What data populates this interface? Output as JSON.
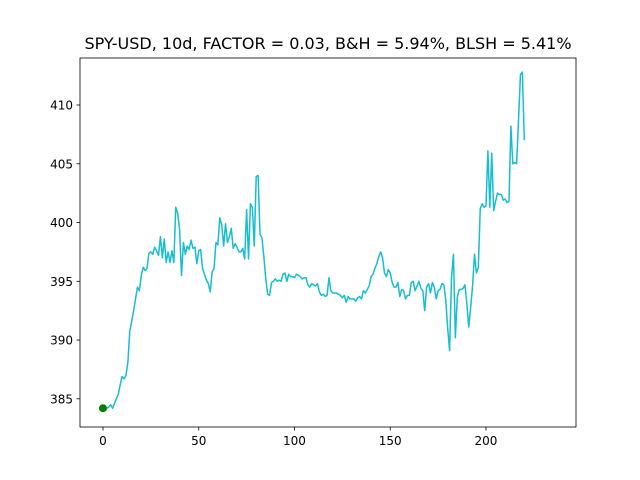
{
  "chart_data": {
    "type": "line",
    "title": "SPY-USD, 10d, FACTOR = 0.03, B&H = 5.94%, BLSH = 5.41%",
    "xlabel": "",
    "ylabel": "",
    "xlim": [
      -12,
      247
    ],
    "ylim": [
      382.6,
      414
    ],
    "xticks": [
      0,
      50,
      100,
      150,
      200
    ],
    "yticks": [
      385,
      390,
      395,
      400,
      405,
      410
    ],
    "grid": false,
    "series": [
      {
        "color": "#17becf",
        "points": [
          [
            0,
            384.2
          ],
          [
            1,
            384.3
          ],
          [
            2,
            384.2
          ],
          [
            3,
            384.3
          ],
          [
            4,
            384.5
          ],
          [
            5,
            384.2
          ],
          [
            6,
            384.6
          ],
          [
            7,
            385.0
          ],
          [
            8,
            385.4
          ],
          [
            9,
            386.2
          ],
          [
            10,
            386.9
          ],
          [
            11,
            386.7
          ],
          [
            12,
            387.0
          ],
          [
            13,
            388.1
          ],
          [
            14,
            390.8
          ],
          [
            15,
            391.6
          ],
          [
            16,
            392.5
          ],
          [
            17,
            393.5
          ],
          [
            18,
            394.5
          ],
          [
            19,
            394.2
          ],
          [
            20,
            395.5
          ],
          [
            21,
            396.2
          ],
          [
            22,
            395.9
          ],
          [
            23,
            396.1
          ],
          [
            24,
            397.4
          ],
          [
            25,
            397.5
          ],
          [
            26,
            397.3
          ],
          [
            27,
            397.9
          ],
          [
            28,
            397.6
          ],
          [
            29,
            397.2
          ],
          [
            30,
            398.8
          ],
          [
            31,
            397.0
          ],
          [
            32,
            398.6
          ],
          [
            33,
            396.6
          ],
          [
            34,
            397.5
          ],
          [
            35,
            396.6
          ],
          [
            36,
            397.6
          ],
          [
            37,
            396.6
          ],
          [
            38,
            401.3
          ],
          [
            39,
            400.8
          ],
          [
            40,
            399.4
          ],
          [
            41,
            395.5
          ],
          [
            42,
            398.3
          ],
          [
            43,
            397.3
          ],
          [
            44,
            398.0
          ],
          [
            45,
            397.7
          ],
          [
            46,
            398.5
          ],
          [
            47,
            397.8
          ],
          [
            48,
            397.9
          ],
          [
            49,
            396.5
          ],
          [
            50,
            397.6
          ],
          [
            51,
            397.7
          ],
          [
            52,
            396.1
          ],
          [
            53,
            395.6
          ],
          [
            54,
            395.1
          ],
          [
            55,
            394.8
          ],
          [
            56,
            394.1
          ],
          [
            57,
            395.8
          ],
          [
            58,
            396.1
          ],
          [
            59,
            398.3
          ],
          [
            60,
            398.1
          ],
          [
            61,
            400.4
          ],
          [
            62,
            399.8
          ],
          [
            63,
            398.0
          ],
          [
            64,
            399.9
          ],
          [
            65,
            398.3
          ],
          [
            66,
            398.8
          ],
          [
            67,
            399.5
          ],
          [
            68,
            397.8
          ],
          [
            69,
            398.2
          ],
          [
            70,
            397.9
          ],
          [
            71,
            397.5
          ],
          [
            72,
            397.5
          ],
          [
            73,
            397.8
          ],
          [
            74,
            396.9
          ],
          [
            75,
            401.1
          ],
          [
            76,
            396.9
          ],
          [
            77,
            401.6
          ],
          [
            78,
            401.3
          ],
          [
            79,
            398.0
          ],
          [
            80,
            403.9
          ],
          [
            81,
            404.0
          ],
          [
            82,
            399.0
          ],
          [
            83,
            398.7
          ],
          [
            84,
            397.1
          ],
          [
            85,
            395.2
          ],
          [
            86,
            393.9
          ],
          [
            87,
            393.8
          ],
          [
            88,
            394.9
          ],
          [
            89,
            395.0
          ],
          [
            90,
            395.2
          ],
          [
            91,
            395.0
          ],
          [
            92,
            395.1
          ],
          [
            93,
            395.0
          ],
          [
            94,
            395.6
          ],
          [
            95,
            395.7
          ],
          [
            96,
            395.0
          ],
          [
            97,
            395.6
          ],
          [
            98,
            395.4
          ],
          [
            99,
            395.4
          ],
          [
            100,
            395.3
          ],
          [
            101,
            395.6
          ],
          [
            102,
            395.5
          ],
          [
            103,
            395.4
          ],
          [
            104,
            395.2
          ],
          [
            105,
            395.3
          ],
          [
            106,
            395.3
          ],
          [
            107,
            394.7
          ],
          [
            108,
            394.5
          ],
          [
            109,
            394.8
          ],
          [
            110,
            394.7
          ],
          [
            111,
            394.6
          ],
          [
            112,
            394.8
          ],
          [
            113,
            394.1
          ],
          [
            114,
            393.8
          ],
          [
            115,
            393.9
          ],
          [
            116,
            393.7
          ],
          [
            117,
            393.8
          ],
          [
            118,
            395.3
          ],
          [
            119,
            394.2
          ],
          [
            120,
            394.0
          ],
          [
            121,
            394.0
          ],
          [
            122,
            394.0
          ],
          [
            123,
            393.9
          ],
          [
            124,
            393.8
          ],
          [
            125,
            393.6
          ],
          [
            126,
            393.8
          ],
          [
            127,
            393.2
          ],
          [
            128,
            393.7
          ],
          [
            129,
            393.5
          ],
          [
            130,
            393.5
          ],
          [
            131,
            393.5
          ],
          [
            132,
            393.3
          ],
          [
            133,
            393.6
          ],
          [
            134,
            393.7
          ],
          [
            135,
            393.5
          ],
          [
            136,
            394.2
          ],
          [
            137,
            394.0
          ],
          [
            138,
            394.3
          ],
          [
            139,
            394.6
          ],
          [
            140,
            395.4
          ],
          [
            141,
            395.6
          ],
          [
            142,
            396.1
          ],
          [
            143,
            396.5
          ],
          [
            144,
            397.1
          ],
          [
            145,
            397.5
          ],
          [
            146,
            397.0
          ],
          [
            147,
            395.7
          ],
          [
            148,
            395.4
          ],
          [
            149,
            396.0
          ],
          [
            150,
            395.7
          ],
          [
            151,
            394.9
          ],
          [
            152,
            394.5
          ],
          [
            153,
            394.5
          ],
          [
            154,
            394.9
          ],
          [
            155,
            393.7
          ],
          [
            156,
            394.3
          ],
          [
            157,
            394.2
          ],
          [
            158,
            393.5
          ],
          [
            159,
            393.8
          ],
          [
            160,
            393.8
          ],
          [
            161,
            394.9
          ],
          [
            162,
            395.0
          ],
          [
            163,
            394.2
          ],
          [
            164,
            394.6
          ],
          [
            165,
            395.0
          ],
          [
            166,
            394.4
          ],
          [
            167,
            394.2
          ],
          [
            168,
            392.5
          ],
          [
            169,
            394.5
          ],
          [
            170,
            394.8
          ],
          [
            171,
            394.0
          ],
          [
            172,
            394.9
          ],
          [
            173,
            394.5
          ],
          [
            174,
            393.5
          ],
          [
            175,
            394.2
          ],
          [
            176,
            394.3
          ],
          [
            177,
            394.8
          ],
          [
            178,
            394.7
          ],
          [
            179,
            393.4
          ],
          [
            180,
            391.0
          ],
          [
            181,
            389.1
          ],
          [
            182,
            395.3
          ],
          [
            183,
            397.3
          ],
          [
            184,
            390.2
          ],
          [
            185,
            393.6
          ],
          [
            186,
            394.3
          ],
          [
            187,
            394.3
          ],
          [
            188,
            394.4
          ],
          [
            189,
            394.7
          ],
          [
            190,
            393.1
          ],
          [
            191,
            391.1
          ],
          [
            192,
            392.8
          ],
          [
            193,
            394.6
          ],
          [
            194,
            397.3
          ],
          [
            195,
            395.7
          ],
          [
            196,
            396.2
          ],
          [
            197,
            401.2
          ],
          [
            198,
            401.6
          ],
          [
            199,
            401.3
          ],
          [
            200,
            401.4
          ],
          [
            201,
            406.1
          ],
          [
            202,
            401.3
          ],
          [
            203,
            405.9
          ],
          [
            204,
            401.0
          ],
          [
            205,
            401.8
          ],
          [
            206,
            402.5
          ],
          [
            207,
            402.4
          ],
          [
            208,
            402.4
          ],
          [
            209,
            401.9
          ],
          [
            210,
            402.0
          ],
          [
            211,
            401.7
          ],
          [
            212,
            401.8
          ],
          [
            213,
            408.2
          ],
          [
            214,
            405.0
          ],
          [
            215,
            405.1
          ],
          [
            216,
            405.0
          ],
          [
            217,
            408.8
          ],
          [
            218,
            412.6
          ],
          [
            219,
            412.8
          ],
          [
            220,
            407.0
          ]
        ]
      }
    ],
    "markers": [
      {
        "x": 0,
        "y": 384.2,
        "color": "#008000"
      }
    ]
  }
}
